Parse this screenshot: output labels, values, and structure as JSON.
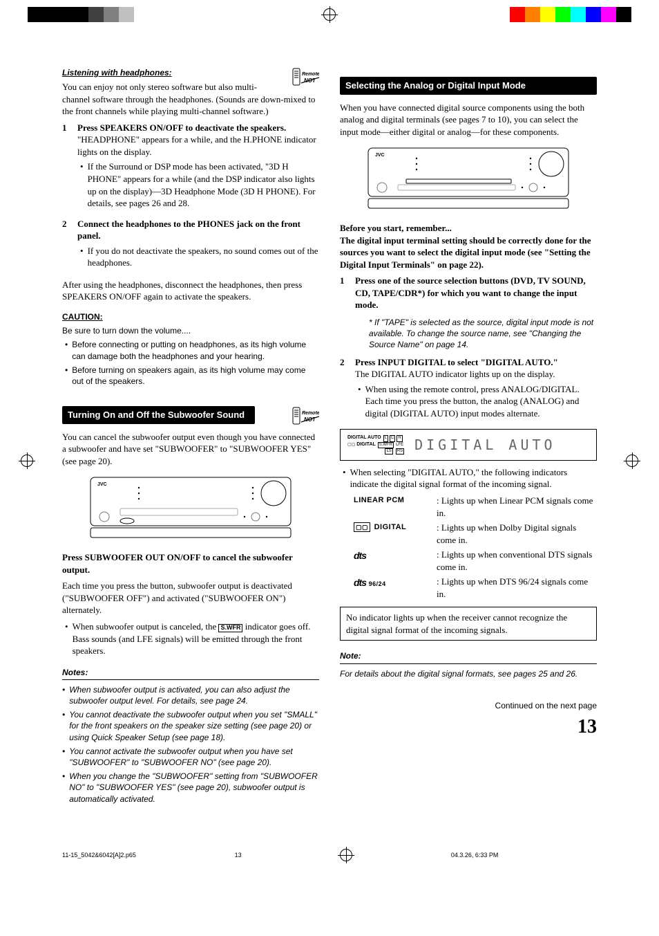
{
  "colorbar_left": [
    "#000000",
    "#000000",
    "#000000",
    "#000000",
    "#404040",
    "#808080",
    "#c0c0c0",
    "#ffffff"
  ],
  "colorbar_right": [
    "#ff0000",
    "#ff8000",
    "#ffff00",
    "#00ff00",
    "#00ffff",
    "#0000ff",
    "#ff00ff",
    "#000000"
  ],
  "left": {
    "headphones": {
      "title": "Listening with headphones:",
      "intro": "You can enjoy not only stereo software but also multi-channel software through the headphones. (Sounds are down-mixed to the front channels while playing multi-channel software.)",
      "steps": [
        {
          "num": "1",
          "lead": "Press SPEAKERS ON/OFF to deactivate the speakers.",
          "body": "\"HEADPHONE\" appears for a while, and the H.PHONE indicator lights on the display.",
          "bullets": [
            "If the Surround or DSP mode has been activated, \"3D H PHONE\" appears for a while (and the DSP indicator also lights up on the display)—3D Headphone Mode (3D H PHONE). For details, see pages 26 and 28."
          ]
        },
        {
          "num": "2",
          "lead": "Connect the headphones to the PHONES jack on the front panel.",
          "body": "",
          "bullets": [
            "If you do not deactivate the speakers, no sound comes out of the headphones."
          ]
        }
      ],
      "after": "After using the headphones, disconnect the headphones, then press SPEAKERS ON/OFF again to activate the speakers."
    },
    "caution": {
      "heading": "CAUTION:",
      "lead": "Be sure to turn down the volume....",
      "bullets": [
        "Before connecting or putting on headphones, as its high volume can damage both the headphones and your hearing.",
        "Before turning on speakers again, as its high volume may come out of the speakers."
      ]
    },
    "subwoofer": {
      "title": "Turning On and Off the Subwoofer Sound",
      "intro": "You can cancel the subwoofer output even though you have connected a subwoofer and have set \"SUBWOOFER\" to \"SUBWOOFER YES\" (see page 20).",
      "press": "Press SUBWOOFER OUT ON/OFF to cancel the subwoofer output.",
      "desc": "Each time you press the button, subwoofer output is deactivated (\"SUBWOOFER OFF\") and activated (\"SUBWOOFER ON\") alternately.",
      "bullet": "When subwoofer output is canceled, the ",
      "swfr": "S.WFR",
      "bullet2": " indicator goes off. Bass sounds (and LFE signals) will be emitted through the front speakers."
    },
    "notes": {
      "heading": "Notes:",
      "items": [
        "When subwoofer output is activated, you can also adjust the subwoofer output level. For details, see page 24.",
        "You cannot deactivate the subwoofer output when you set \"SMALL\" for the front speakers on the speaker size setting (see page 20) or using Quick Speaker Setup (see page 18).",
        "You cannot activate the subwoofer output when you have set \"SUBWOOFER\" to \"SUBWOOFER NO\" (see page 20).",
        "When you change the \"SUBWOOFER\" setting from \"SUBWOOFER NO\" to \"SUBWOOFER YES\" (see page 20), subwoofer output is automatically activated."
      ]
    }
  },
  "right": {
    "title": "Selecting the Analog or Digital Input Mode",
    "intro": "When you have connected digital source components using the both analog and digital terminals (see pages 7 to 10), you can select the input mode—either digital or analog—for these components.",
    "before": {
      "h": "Before you start, remember...",
      "b": "The digital input terminal setting should be correctly done for the sources you want to select the digital input mode (see \"Setting the Digital Input Terminals\" on page 22)."
    },
    "steps": [
      {
        "num": "1",
        "lead": "Press one of the source selection buttons (DVD, TV SOUND, CD, TAPE/CDR*) for which you want to change the input mode.",
        "note": "* If \"TAPE\" is selected as the source, digital input mode is not available. To change the source name, see \"Changing the Source Name\" on page 14."
      },
      {
        "num": "2",
        "lead": "Press INPUT DIGITAL to select \"DIGITAL AUTO.\"",
        "body": "The DIGITAL AUTO indicator lights up on the display.",
        "bullets": [
          "When using the remote control, press ANALOG/DIGITAL. Each time you press the button, the analog (ANALOG) and digital (DIGITAL AUTO) input modes alternate."
        ]
      }
    ],
    "lcd": {
      "tags": "DIGITAL AUTO  L  C  R  S.WFR LFE  LS  RS  DIGITAL",
      "text": "DIGITAL  AUTO"
    },
    "indicators_intro": "When selecting \"DIGITAL AUTO,\" the following indicators indicate the digital signal format of the incoming signal.",
    "indicators": [
      {
        "label": "LINEAR PCM",
        "desc": ": Lights up when Linear PCM signals come in."
      },
      {
        "label": "DOLBY DIGITAL",
        "desc": ": Lights up when Dolby Digital signals come in."
      },
      {
        "label": "dts",
        "desc": ": Lights up when conventional DTS signals come in."
      },
      {
        "label": "dts 96/24",
        "desc": ": Lights up when DTS 96/24 signals come in."
      }
    ],
    "box_note": "No indicator lights up when the receiver cannot recognize the digital signal format of the incoming signals.",
    "note": {
      "heading": "Note:",
      "text": "For details about the digital signal formats, see pages 25 and 26."
    },
    "continued": "Continued on the next page",
    "page_num": "13"
  },
  "remote_badge": {
    "top": "Remote",
    "bot": "NOT"
  },
  "footer": {
    "file": "11-15_5042&6042[A]2.p65",
    "page": "13",
    "date": "04.3.26, 6:33 PM"
  }
}
